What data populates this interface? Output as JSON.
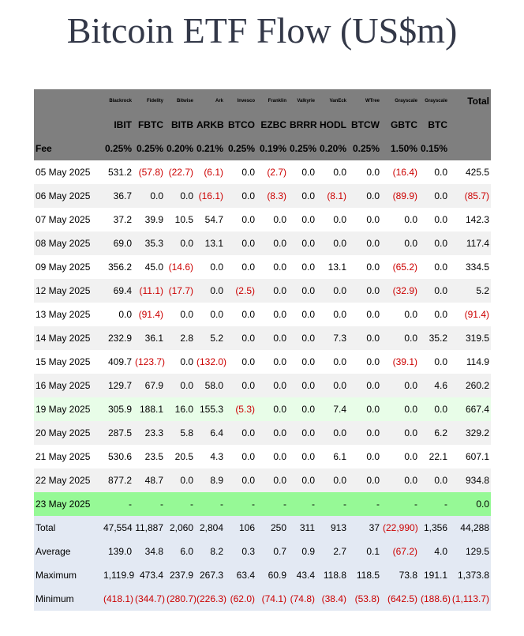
{
  "title": "Bitcoin ETF Flow (US$m)",
  "header": {
    "issuers": [
      "Blackrock",
      "Fidelity",
      "Bitwise",
      "Ark",
      "Invesco",
      "Franklin",
      "Valkyrie",
      "VanEck",
      "WTree",
      "Grayscale",
      "Grayscale"
    ],
    "total_label": "Total",
    "tickers": [
      "IBIT",
      "FBTC",
      "BITB",
      "ARKB",
      "BTCO",
      "EZBC",
      "BRRR",
      "HODL",
      "BTCW",
      "GBTC",
      "BTC"
    ],
    "fee_label": "Fee",
    "fees": [
      "0.25%",
      "0.25%",
      "0.20%",
      "0.21%",
      "0.25%",
      "0.19%",
      "0.25%",
      "0.20%",
      "0.25%",
      "1.50%",
      "0.15%"
    ]
  },
  "rows": [
    {
      "date": "05 May 2025",
      "style": "plain",
      "values": [
        "531.2",
        "(57.8)",
        "(22.7)",
        "(6.1)",
        "0.0",
        "(2.7)",
        "0.0",
        "0.0",
        "0.0",
        "(16.4)",
        "0.0"
      ],
      "total": "425.5"
    },
    {
      "date": "06 May 2025",
      "style": "zebra",
      "values": [
        "36.7",
        "0.0",
        "0.0",
        "(16.1)",
        "0.0",
        "(8.3)",
        "0.0",
        "(8.1)",
        "0.0",
        "(89.9)",
        "0.0"
      ],
      "total": "(85.7)"
    },
    {
      "date": "07 May 2025",
      "style": "plain",
      "values": [
        "37.2",
        "39.9",
        "10.5",
        "54.7",
        "0.0",
        "0.0",
        "0.0",
        "0.0",
        "0.0",
        "0.0",
        "0.0"
      ],
      "total": "142.3"
    },
    {
      "date": "08 May 2025",
      "style": "zebra",
      "values": [
        "69.0",
        "35.3",
        "0.0",
        "13.1",
        "0.0",
        "0.0",
        "0.0",
        "0.0",
        "0.0",
        "0.0",
        "0.0"
      ],
      "total": "117.4"
    },
    {
      "date": "09 May 2025",
      "style": "plain",
      "values": [
        "356.2",
        "45.0",
        "(14.6)",
        "0.0",
        "0.0",
        "0.0",
        "0.0",
        "13.1",
        "0.0",
        "(65.2)",
        "0.0"
      ],
      "total": "334.5"
    },
    {
      "date": "12 May 2025",
      "style": "zebra",
      "values": [
        "69.4",
        "(11.1)",
        "(17.7)",
        "0.0",
        "(2.5)",
        "0.0",
        "0.0",
        "0.0",
        "0.0",
        "(32.9)",
        "0.0"
      ],
      "total": "5.2"
    },
    {
      "date": "13 May 2025",
      "style": "plain",
      "values": [
        "0.0",
        "(91.4)",
        "0.0",
        "0.0",
        "0.0",
        "0.0",
        "0.0",
        "0.0",
        "0.0",
        "0.0",
        "0.0"
      ],
      "total": "(91.4)"
    },
    {
      "date": "14 May 2025",
      "style": "zebra",
      "values": [
        "232.9",
        "36.1",
        "2.8",
        "5.2",
        "0.0",
        "0.0",
        "0.0",
        "7.3",
        "0.0",
        "0.0",
        "35.2"
      ],
      "total": "319.5"
    },
    {
      "date": "15 May 2025",
      "style": "plain",
      "values": [
        "409.7",
        "(123.7)",
        "0.0",
        "(132.0)",
        "0.0",
        "0.0",
        "0.0",
        "0.0",
        "0.0",
        "(39.1)",
        "0.0"
      ],
      "total": "114.9"
    },
    {
      "date": "16 May 2025",
      "style": "zebra",
      "values": [
        "129.7",
        "67.9",
        "0.0",
        "58.0",
        "0.0",
        "0.0",
        "0.0",
        "0.0",
        "0.0",
        "0.0",
        "4.6"
      ],
      "total": "260.2"
    },
    {
      "date": "19 May 2025",
      "style": "hl",
      "values": [
        "305.9",
        "188.1",
        "16.0",
        "155.3",
        "(5.3)",
        "0.0",
        "0.0",
        "7.4",
        "0.0",
        "0.0",
        "0.0"
      ],
      "total": "667.4"
    },
    {
      "date": "20 May 2025",
      "style": "zebra",
      "values": [
        "287.5",
        "23.3",
        "5.8",
        "6.4",
        "0.0",
        "0.0",
        "0.0",
        "0.0",
        "0.0",
        "0.0",
        "6.2"
      ],
      "total": "329.2"
    },
    {
      "date": "21 May 2025",
      "style": "plain",
      "values": [
        "530.6",
        "23.5",
        "20.5",
        "4.3",
        "0.0",
        "0.0",
        "0.0",
        "6.1",
        "0.0",
        "0.0",
        "22.1"
      ],
      "total": "607.1"
    },
    {
      "date": "22 May 2025",
      "style": "zebra",
      "values": [
        "877.2",
        "48.7",
        "0.0",
        "8.9",
        "0.0",
        "0.0",
        "0.0",
        "0.0",
        "0.0",
        "0.0",
        "0.0"
      ],
      "total": "934.8"
    },
    {
      "date": "23 May 2025",
      "style": "today",
      "values": [
        "-",
        "-",
        "-",
        "-",
        "-",
        "-",
        "-",
        "-",
        "-",
        "-",
        "-"
      ],
      "total": "0.0"
    }
  ],
  "summary": [
    {
      "label": "Total",
      "values": [
        "47,554",
        "11,887",
        "2,060",
        "2,804",
        "106",
        "250",
        "311",
        "913",
        "37",
        "(22,990)",
        "1,356"
      ],
      "total": "44,288"
    },
    {
      "label": "Average",
      "values": [
        "139.0",
        "34.8",
        "6.0",
        "8.2",
        "0.3",
        "0.7",
        "0.9",
        "2.7",
        "0.1",
        "(67.2)",
        "4.0"
      ],
      "total": "129.5"
    },
    {
      "label": "Maximum",
      "values": [
        "1,119.9",
        "473.4",
        "237.9",
        "267.3",
        "63.4",
        "60.9",
        "43.4",
        "118.8",
        "118.5",
        "73.8",
        "191.1"
      ],
      "total": "1,373.8"
    },
    {
      "label": "Minimum",
      "values": [
        "(418.1)",
        "(344.7)",
        "(280.7)",
        "(226.3)",
        "(62.0)",
        "(74.1)",
        "(74.8)",
        "(38.4)",
        "(53.8)",
        "(642.5)",
        "(188.6)"
      ],
      "total": "(1,113.7)"
    }
  ],
  "colors": {
    "header_bg": "#7f7f7f",
    "negative": "#cc0000",
    "zebra": "#f1f1f1",
    "highlight": "#e8fde8",
    "today": "#96f996",
    "summary_bg": "#e3e9f3",
    "title": "#333848"
  }
}
